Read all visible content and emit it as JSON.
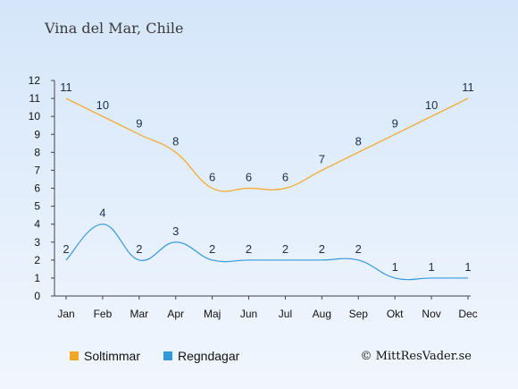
{
  "chart_data": {
    "type": "line",
    "title": "Vina del Mar, Chile",
    "categories": [
      "Jan",
      "Feb",
      "Mar",
      "Apr",
      "Maj",
      "Jun",
      "Jul",
      "Aug",
      "Sep",
      "Okt",
      "Nov",
      "Dec"
    ],
    "ylim": [
      0,
      12
    ],
    "yticks": [
      "0",
      "1",
      "2",
      "3",
      "4",
      "5",
      "6",
      "7",
      "8",
      "9",
      "10",
      "11",
      "12"
    ],
    "grid": false,
    "legend_position": "bottom-left",
    "series": [
      {
        "name": "Soltimmar",
        "color": "#f5a623",
        "values": [
          11,
          10,
          9,
          8,
          6,
          6,
          6,
          7,
          8,
          9,
          10,
          11
        ]
      },
      {
        "name": "Regndagar",
        "color": "#3399dd",
        "values": [
          2,
          4,
          2,
          3,
          2,
          2,
          2,
          2,
          2,
          1,
          1,
          1
        ]
      }
    ]
  },
  "copyright": "© MittResVader.se"
}
